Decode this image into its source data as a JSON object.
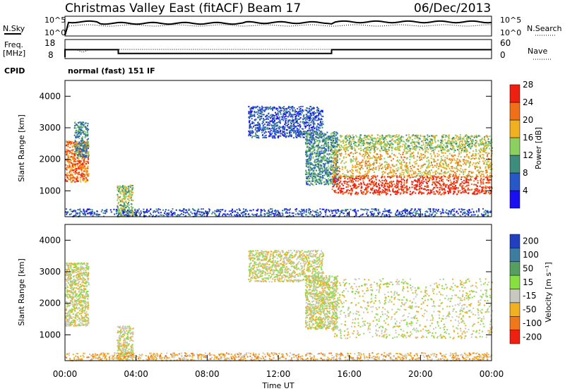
{
  "header": {
    "station_title": "Christmas Valley East (fitACF)",
    "beam_label": "Beam 17",
    "date": "06/Dec/2013"
  },
  "strip_panels": {
    "nsky_label": "N.Sky",
    "nsearch_label": "N.Search",
    "sky_tick_top": "10^5",
    "sky_tick_bottom": "10^0",
    "search_tick_top": "10^5",
    "search_tick_bottom": "10^0",
    "freq_label": "Freq.",
    "freq_unit": "[MHz]",
    "freq_tick_top": "18",
    "freq_tick_bottom": "8",
    "nave_label": "Nave",
    "nave_tick_top": "60",
    "nave_tick_bottom": "0",
    "cpid_label": "CPID",
    "cpid_value": "normal (fast) 151 IF",
    "freq_segments": [
      {
        "start": 0.0,
        "end": 3.0,
        "value": 12.6
      },
      {
        "start": 3.0,
        "end": 15.0,
        "value": 10.3
      },
      {
        "start": 15.0,
        "end": 24.0,
        "value": 12.6
      }
    ]
  },
  "axes": {
    "xlabel": "Time UT",
    "ylabel": "Slant Range [km]",
    "xticks": [
      "00:00",
      "04:00",
      "08:00",
      "12:00",
      "16:00",
      "20:00",
      "00:00"
    ],
    "yticks": [
      "1000",
      "2000",
      "3000",
      "4000"
    ]
  },
  "colorbars": {
    "power": {
      "label": "Power [dB]",
      "ticks": [
        "4",
        "8",
        "12",
        "16",
        "20",
        "24",
        "28"
      ],
      "colors": [
        "#1a0ff0",
        "#2858c8",
        "#3e8c7c",
        "#8cd060",
        "#f0b020",
        "#f07018",
        "#f02010"
      ]
    },
    "velocity": {
      "label": "Velocity [m s⁻¹]",
      "ticks": [
        "200",
        "100",
        "50",
        "15",
        "-15",
        "-50",
        "-100",
        "-200"
      ],
      "colors": [
        "#2040c0",
        "#3d7ea0",
        "#55a060",
        "#88e040",
        "#c8c8c0",
        "#f0b020",
        "#f07818",
        "#f02010"
      ]
    }
  },
  "chart_data": [
    {
      "type": "heatmap",
      "name": "power",
      "x_range": [
        0,
        24
      ],
      "y_range": [
        180,
        4500
      ],
      "x_unit": "hours UT",
      "y_unit": "km",
      "regions": [
        {
          "t": [
            0.0,
            1.3
          ],
          "r": [
            1300,
            2600
          ],
          "level": 5
        },
        {
          "t": [
            0.5,
            1.3
          ],
          "r": [
            2100,
            3200
          ],
          "level": 2
        },
        {
          "t": [
            2.9,
            3.8
          ],
          "r": [
            200,
            1200
          ],
          "level": 3
        },
        {
          "t": [
            0.0,
            24.0
          ],
          "r": [
            200,
            450
          ],
          "level": 1
        },
        {
          "t": [
            10.3,
            14.5
          ],
          "r": [
            2700,
            3700
          ],
          "level": 1
        },
        {
          "t": [
            13.5,
            15.3
          ],
          "r": [
            1200,
            2900
          ],
          "level": 2
        },
        {
          "t": [
            15.0,
            24.0
          ],
          "r": [
            900,
            1500
          ],
          "level": 6
        },
        {
          "t": [
            15.0,
            24.0
          ],
          "r": [
            1450,
            2300
          ],
          "level": 4
        },
        {
          "t": [
            15.3,
            24.0
          ],
          "r": [
            2300,
            2800
          ],
          "level": 3
        }
      ]
    },
    {
      "type": "heatmap",
      "name": "velocity",
      "x_range": [
        0,
        24
      ],
      "y_range": [
        180,
        4500
      ],
      "x_unit": "hours UT",
      "y_unit": "km",
      "regions": [
        {
          "t": [
            0.0,
            1.3
          ],
          "r": [
            1300,
            3300
          ],
          "level": 4
        },
        {
          "t": [
            2.9,
            3.8
          ],
          "r": [
            200,
            1300
          ],
          "level": 4
        },
        {
          "t": [
            0.0,
            24.0
          ],
          "r": [
            200,
            450
          ],
          "level": 5
        },
        {
          "t": [
            10.3,
            14.5
          ],
          "r": [
            2700,
            3700
          ],
          "level": 4
        },
        {
          "t": [
            13.5,
            15.3
          ],
          "r": [
            1200,
            2900
          ],
          "level": 4
        },
        {
          "t": [
            15.0,
            24.0
          ],
          "r": [
            900,
            2800
          ],
          "level": 4
        }
      ]
    }
  ]
}
